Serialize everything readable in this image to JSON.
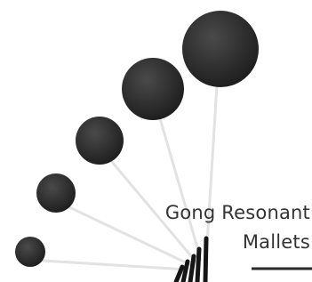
{
  "header": {
    "title_lines": [
      "Gong Resonant",
      "Mallets"
    ]
  }
}
